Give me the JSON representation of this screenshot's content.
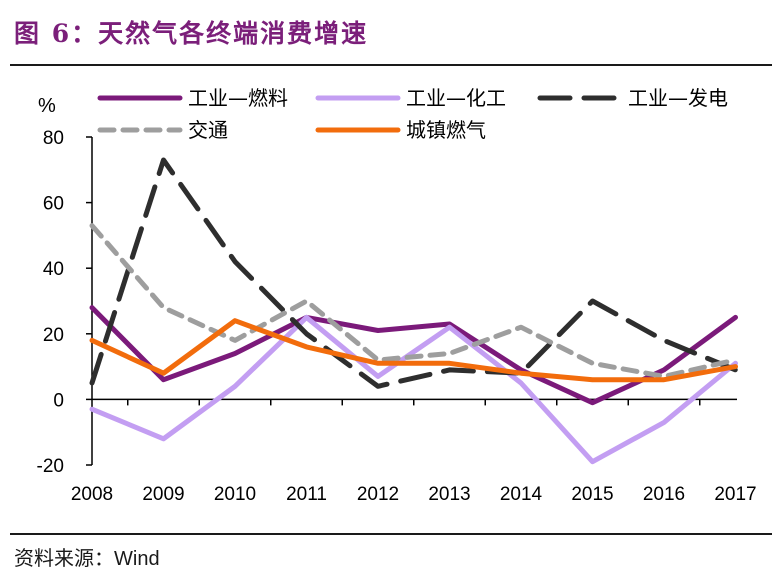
{
  "figure": {
    "title": "图 6：天然气各终端消费增速",
    "source_label": "资料来源：",
    "source_value": "Wind"
  },
  "chart_data": {
    "type": "line",
    "title": "图 6：天然气各终端消费增速",
    "xlabel": "",
    "ylabel": "%",
    "x": [
      "2008",
      "2009",
      "2010",
      "2011",
      "2012",
      "2013",
      "2014",
      "2015",
      "2016",
      "2017"
    ],
    "ylim": [
      -20,
      80
    ],
    "yticks": [
      -20,
      0,
      20,
      40,
      60,
      80
    ],
    "grid": false,
    "legend_position": "top",
    "series": [
      {
        "name": "工业—燃料",
        "color": "#7b1a7a",
        "dash": "solid",
        "values": [
          28,
          6,
          14,
          25,
          21,
          23,
          9,
          -1,
          9,
          25
        ]
      },
      {
        "name": "工业—化工",
        "color": "#c39ef2",
        "dash": "solid",
        "values": [
          -3,
          -12,
          4,
          25,
          7,
          22,
          5,
          -19,
          -7,
          11
        ]
      },
      {
        "name": "工业—发电",
        "color": "#2e2e2e",
        "dash": "longdash",
        "values": [
          5,
          73,
          42,
          20,
          4,
          9,
          8,
          30,
          18,
          9
        ]
      },
      {
        "name": "交通",
        "color": "#9e9e9e",
        "dash": "shortdash",
        "values": [
          53,
          28,
          18,
          30,
          12,
          14,
          22,
          11,
          7,
          12
        ]
      },
      {
        "name": "城镇燃气",
        "color": "#f26c0c",
        "dash": "solid",
        "values": [
          18,
          8,
          24,
          16,
          11,
          11,
          8,
          6,
          6,
          10
        ]
      }
    ]
  }
}
